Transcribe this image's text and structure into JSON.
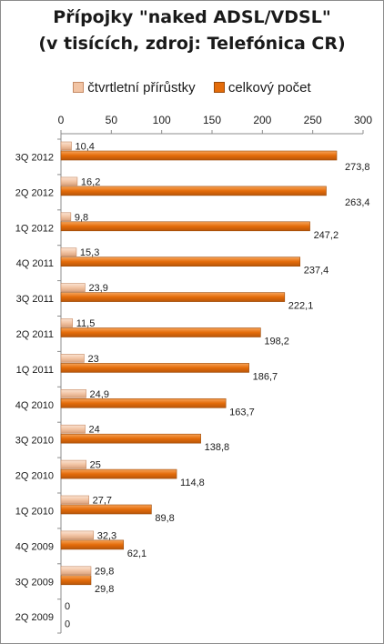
{
  "colors": {
    "increment": "#f2c4a4",
    "total": "#e46c0a",
    "increment_edge": "#c58a65",
    "total_edge": "#9c4a08"
  },
  "chart_data": {
    "type": "bar",
    "orientation": "horizontal",
    "title": [
      "Přípojky \"naked ADSL/VDSL\"",
      "(v tisících, zdroj: Telefónica CR)"
    ],
    "legend_position": "top",
    "grid": false,
    "xlim": [
      0,
      300
    ],
    "xticks": [
      "0",
      "50",
      "100",
      "150",
      "200",
      "250",
      "300"
    ],
    "categories": [
      "3Q 2012",
      "2Q 2012",
      "1Q 2012",
      "4Q 2011",
      "3Q 2011",
      "2Q 2011",
      "1Q 2011",
      "4Q 2010",
      "3Q 2010",
      "2Q 2010",
      "1Q 2010",
      "4Q 2009",
      "3Q 2009",
      "2Q 2009"
    ],
    "series": [
      {
        "name": "čtvrtletní přírůstky",
        "values": [
          10.4,
          16.2,
          9.8,
          15.3,
          23.9,
          11.5,
          23,
          24.9,
          24,
          25,
          27.7,
          32.3,
          29.8,
          0
        ],
        "labels": [
          "10,4",
          "16,2",
          "9,8",
          "15,3",
          "23,9",
          "11,5",
          "23",
          "24,9",
          "24",
          "25",
          "27,7",
          "32,3",
          "29,8",
          "0"
        ]
      },
      {
        "name": "celkový počet",
        "values": [
          273.8,
          263.4,
          247.2,
          237.4,
          222.1,
          198.2,
          186.7,
          163.7,
          138.8,
          114.8,
          89.8,
          62.1,
          29.8,
          0
        ],
        "labels": [
          "273,8",
          "263,4",
          "247,2",
          "237,4",
          "222,1",
          "198,2",
          "186,7",
          "163,7",
          "138,8",
          "114,8",
          "89,8",
          "62,1",
          "29,8",
          "0"
        ]
      }
    ]
  }
}
